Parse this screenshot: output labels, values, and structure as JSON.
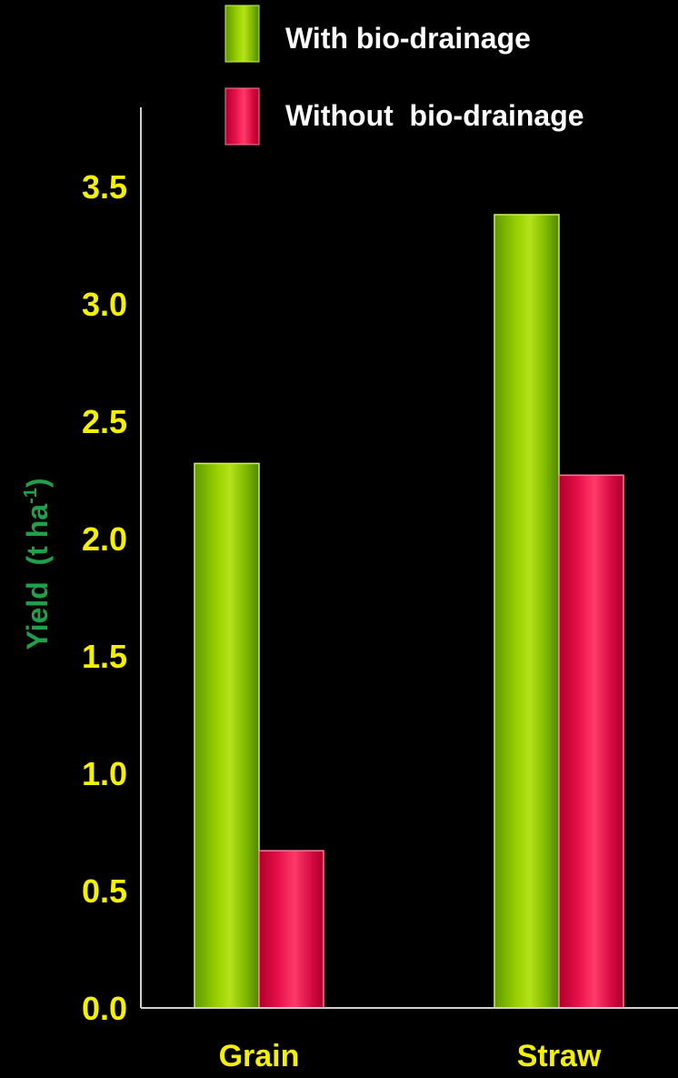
{
  "chart_data": {
    "type": "bar",
    "categories": [
      "Grain",
      "Straw"
    ],
    "series": [
      {
        "name": "With bio-drainage",
        "values": [
          2.32,
          3.38
        ],
        "color": "#7fc400"
      },
      {
        "name": "Without  bio-drainage",
        "values": [
          0.67,
          2.27
        ],
        "color": "#e8104a"
      }
    ],
    "ylabel": "Yield  (t ha-1)",
    "ylabel_main": "Yield  (t ha",
    "ylabel_sup": "-1",
    "ylabel_close": ")",
    "ylim": [
      0,
      3.5
    ],
    "yticks": [
      "0.0",
      "0.5",
      "1.0",
      "1.5",
      "2.0",
      "2.5",
      "3.0",
      "3.5"
    ],
    "legend_position": "top",
    "grid": false,
    "colors": {
      "background": "#000000",
      "tick_label": "#f5f000",
      "axis_title": "#1fa04a",
      "axis_line": "#cfcfcf",
      "legend_text": "#ffffff"
    }
  }
}
